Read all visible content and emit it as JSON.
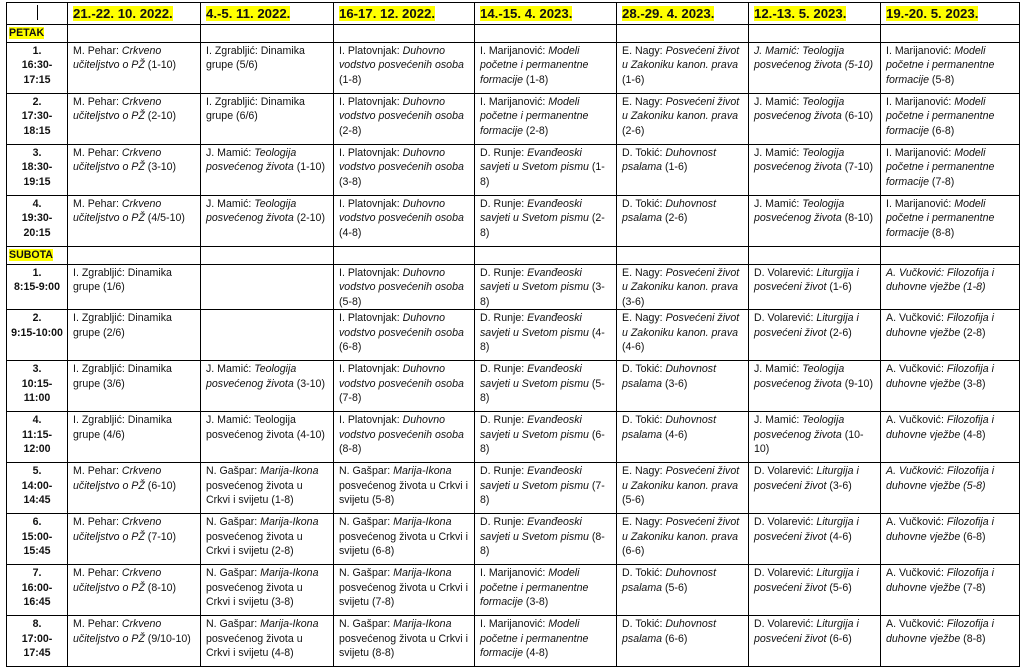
{
  "corner_mark": "|",
  "dates": [
    "21.-22. 10. 2022.",
    "4.-5. 11. 2022.",
    "16-17. 12. 2022.",
    "14.-15. 4. 2023.",
    "28.-29. 4. 2023.",
    "12.-13. 5. 2023.",
    "19.-20. 5. 2023."
  ],
  "highlight_color": "#ffff00",
  "days": [
    {
      "label": "PETAK",
      "rows": [
        {
          "num": "1.",
          "time": "16:30-17:15",
          "cells": [
            {
              "a": "M. Pehar: ",
              "t": "Crkveno učiteljstvo o PŽ",
              "n": " (1-10)"
            },
            {
              "a": "I. Zgrabljić: Dinamika grupe (5/6)"
            },
            {
              "a": "I. Platovnjak: ",
              "t": "Duhovno vodstvo posvećenih osoba",
              "n": " (1-8)"
            },
            {
              "a": "I. Marijanović: ",
              "t": "Modeli početne i permanentne formacije",
              "n": " (1-8)"
            },
            {
              "a": "E. Nagy: ",
              "t": "Posvećeni život u Zakoniku kanon. prava",
              "n": " (1-6)"
            },
            {
              "a": "J. Mamić: ",
              "t": "Teologija posvećenog života",
              "n": " (5-10)",
              "i": true
            },
            {
              "a": "I. Marijanović: ",
              "t": "Modeli početne i permanentne formacije",
              "n": " (5-8)"
            }
          ]
        },
        {
          "num": "2.",
          "time": "17:30-18:15",
          "cells": [
            {
              "a": "M. Pehar: ",
              "t": "Crkveno učiteljstvo o PŽ",
              "n": " (2-10)"
            },
            {
              "a": "I. Zgrabljić: Dinamika grupe (6/6)"
            },
            {
              "a": "I. Platovnjak: ",
              "t": "Duhovno vodstvo posvećenih osoba",
              "n": " (2-8)"
            },
            {
              "a": "I. Marijanović: ",
              "t": "Modeli početne i permanentne formacije",
              "n": " (2-8)"
            },
            {
              "a": "E. Nagy: ",
              "t": "Posvećeni život u Zakoniku kanon. prava",
              "n": " (2-6)"
            },
            {
              "a": "J. Mamić: ",
              "t": "Teologija posvećenog života",
              "n": " (6-10)"
            },
            {
              "a": "I. Marijanović: ",
              "t": "Modeli početne i permanentne formacije",
              "n": " (6-8)"
            }
          ]
        },
        {
          "num": "3.",
          "time": "18:30-19:15",
          "cells": [
            {
              "a": "M. Pehar: ",
              "t": "Crkveno učiteljstvo o PŽ",
              "n": " (3-10)"
            },
            {
              "a": "J. Mamić: ",
              "t": "Teologija posvećenog života",
              "n": " (1-10)"
            },
            {
              "a": "I. Platovnjak: ",
              "t": "Duhovno vodstvo posvećenih osoba",
              "n": " (3-8)"
            },
            {
              "a": "D. Runje: ",
              "t": "Evanđeoski savjeti u Svetom pismu",
              "n": " (1-8)"
            },
            {
              "a": "D. Tokić: ",
              "t": "Duhovnost psalama",
              "n": " (1-6)"
            },
            {
              "a": "J. Mamić: ",
              "t": "Teologija posvećenog života",
              "n": " (7-10)"
            },
            {
              "a": "I. Marijanović: ",
              "t": "Modeli početne i permanentne formacije",
              "n": " (7-8)"
            }
          ]
        },
        {
          "num": "4.",
          "time": "19:30-20:15",
          "cells": [
            {
              "a": "M. Pehar: ",
              "t": "Crkveno učiteljstvo o PŽ",
              "n": " (4/5-10)"
            },
            {
              "a": "J. Mamić: ",
              "t": "Teologija posvećenog života",
              "n": " (2-10)"
            },
            {
              "a": "I. Platovnjak: ",
              "t": "Duhovno vodstvo posvećenih osoba",
              "n": " (4-8)"
            },
            {
              "a": "D. Runje: ",
              "t": "Evanđeoski savjeti u Svetom pismu",
              "n": " (2-8)"
            },
            {
              "a": "D. Tokić: ",
              "t": "Duhovnost psalama",
              "n": " (2-6)"
            },
            {
              "a": "J. Mamić: ",
              "t": "Teologija posvećenog života",
              "n": " (8-10)"
            },
            {
              "a": "I. Marijanović: ",
              "t": "Modeli početne i permanentne formacije",
              "n": " (8-8)"
            }
          ]
        }
      ]
    },
    {
      "label": "SUBOTA",
      "rows": [
        {
          "num": "1.",
          "time": "8:15-9:00",
          "cells": [
            {
              "a": "I. Zgrabljić: Dinamika grupe (1/6)"
            },
            {},
            {
              "a": "I. Platovnjak: ",
              "t": "Duhovno vodstvo posvećenih osoba",
              "n": " (5-8)"
            },
            {
              "a": "D. Runje: ",
              "t": "Evanđeoski savjeti u Svetom pismu",
              "n": " (3-8)"
            },
            {
              "a": "E. Nagy: ",
              "t": "Posvećeni život u Zakoniku kanon. prava",
              "n": " (3-6)"
            },
            {
              "a": "D. Volarević: ",
              "t": "Liturgija i posvećeni život",
              "n": " (1-6)"
            },
            {
              "a": "A. Vučković: ",
              "t": "Filozofija i duhovne vježbe",
              "n": " (1-8)",
              "i": true
            }
          ]
        },
        {
          "num": "2.",
          "time": "9:15-10:00",
          "cells": [
            {
              "a": "I. Zgrabljić: Dinamika grupe (2/6)"
            },
            {},
            {
              "a": "I. Platovnjak: ",
              "t": "Duhovno vodstvo posvećenih osoba",
              "n": " (6-8)"
            },
            {
              "a": "D. Runje: ",
              "t": "Evanđeoski savjeti u Svetom pismu",
              "n": " (4-8)"
            },
            {
              "a": "E. Nagy: ",
              "t": "Posvećeni život u Zakoniku kanon. prava",
              "n": " (4-6)"
            },
            {
              "a": "D. Volarević: ",
              "t": "Liturgija i posvećeni život",
              "n": " (2-6)"
            },
            {
              "a": "A. Vučković: ",
              "t": "Filozofija i duhovne vježbe",
              "n": " (2-8)"
            }
          ]
        },
        {
          "num": "3.",
          "time": "10:15-11:00",
          "cells": [
            {
              "a": "I. Zgrabljić: Dinamika grupe (3/6)"
            },
            {
              "a": "J. Mamić: ",
              "t": "Teologija posvećenog života",
              "n": " (3-10)"
            },
            {
              "a": "I. Platovnjak: ",
              "t": "Duhovno vodstvo posvećenih osoba",
              "n": " (7-8)"
            },
            {
              "a": "D. Runje: ",
              "t": "Evanđeoski savjeti u Svetom pismu",
              "n": " (5-8)"
            },
            {
              "a": "D. Tokić: ",
              "t": "Duhovnost psalama",
              "n": " (3-6)"
            },
            {
              "a": "J. Mamić: ",
              "t": "Teologija posvećenog života",
              "n": " (9-10)"
            },
            {
              "a": "A. Vučković: ",
              "t": "Filozofija i duhovne vježbe",
              "n": " (3-8)"
            }
          ]
        },
        {
          "num": "4.",
          "time": "11:15-12:00",
          "cells": [
            {
              "a": "I. Zgrabljić: Dinamika grupe (4/6)"
            },
            {
              "a": "J. Mamić: Teologija posvećenog života (4-10)"
            },
            {
              "a": "I. Platovnjak: ",
              "t": "Duhovno vodstvo posvećenih osoba",
              "n": " (8-8)"
            },
            {
              "a": "D. Runje: ",
              "t": "Evanđeoski savjeti u Svetom pismu",
              "n": " (6-8)"
            },
            {
              "a": "D. Tokić: ",
              "t": "Duhovnost psalama",
              "n": " (4-6)"
            },
            {
              "a": "J. Mamić: ",
              "t": "Teologija posvećenog života",
              "n": " (10-10)"
            },
            {
              "a": "A. Vučković: ",
              "t": "Filozofija i duhovne vježbe",
              "n": " (4-8)"
            }
          ]
        },
        {
          "num": "5.",
          "time": "14:00-14:45",
          "cells": [
            {
              "a": "M. Pehar: ",
              "t": "Crkveno učiteljstvo o PŽ",
              "n": " (6-10)"
            },
            {
              "a": "N. Gašpar: ",
              "t": "Marija-Ikona",
              "n": " posvećenog života u Crkvi i svijetu (1-8)"
            },
            {
              "a": "N. Gašpar: ",
              "t": "Marija-Ikona",
              "n": " posvećenog života u Crkvi i svijetu (5-8)"
            },
            {
              "a": "D. Runje: ",
              "t": "Evanđeoski savjeti u Svetom pismu",
              "n": " (7-8)"
            },
            {
              "a": "E. Nagy: ",
              "t": "Posvećeni život u Zakoniku kanon. prava",
              "n": " (5-6)"
            },
            {
              "a": "D. Volarević: ",
              "t": "Liturgija i posvećeni život",
              "n": " (3-6)"
            },
            {
              "a": "A. Vučković: ",
              "t": "Filozofija i duhovne vježbe",
              "n": " (5-8)",
              "i": true
            }
          ]
        },
        {
          "num": "6.",
          "time": "15:00-15:45",
          "cells": [
            {
              "a": "M. Pehar: ",
              "t": "Crkveno učiteljstvo o PŽ",
              "n": " (7-10)"
            },
            {
              "a": "N. Gašpar: ",
              "t": "Marija-Ikona",
              "n": " posvećenog života u Crkvi i svijetu (2-8)"
            },
            {
              "a": "N. Gašpar: ",
              "t": "Marija-Ikona",
              "n": " posvećenog života u Crkvi i svijetu (6-8)"
            },
            {
              "a": "D. Runje: ",
              "t": "Evanđeoski savjeti u Svetom pismu",
              "n": " (8-8)"
            },
            {
              "a": "E. Nagy: ",
              "t": "Posvećeni život u Zakoniku kanon. prava",
              "n": " (6-6)"
            },
            {
              "a": "D. Volarević: ",
              "t": "Liturgija i posvećeni život",
              "n": " (4-6)"
            },
            {
              "a": "A. Vučković: ",
              "t": "Filozofija i duhovne vježbe",
              "n": " (6-8)"
            }
          ]
        },
        {
          "num": "7.",
          "time": "16:00-16:45",
          "cells": [
            {
              "a": "M. Pehar: ",
              "t": "Crkveno učiteljstvo o PŽ",
              "n": " (8-10)"
            },
            {
              "a": "N. Gašpar: ",
              "t": "Marija-Ikona",
              "n": " posvećenog života u Crkvi i svijetu (3-8)"
            },
            {
              "a": "N. Gašpar: ",
              "t": "Marija-Ikona",
              "n": " posvećenog života u Crkvi i svijetu (7-8)"
            },
            {
              "a": "I. Marijanović: ",
              "t": "Modeli početne i permanentne formacije",
              "n": " (3-8)"
            },
            {
              "a": "D. Tokić: ",
              "t": "Duhovnost psalama",
              "n": " (5-6)"
            },
            {
              "a": "D. Volarević: ",
              "t": "Liturgija i posvećeni život",
              "n": " (5-6)"
            },
            {
              "a": "A. Vučković: ",
              "t": "Filozofija i duhovne vježbe",
              "n": " (7-8)"
            }
          ]
        },
        {
          "num": "8.",
          "time": "17:00-17:45",
          "cells": [
            {
              "a": "M. Pehar: ",
              "t": "Crkveno učiteljstvo o PŽ",
              "n": " (9/10-10)"
            },
            {
              "a": "N. Gašpar: ",
              "t": "Marija-Ikona",
              "n": " posvećenog života u Crkvi i svijetu (4-8)"
            },
            {
              "a": "N. Gašpar: ",
              "t": "Marija-Ikona",
              "n": " posvećenog života u Crkvi i svijetu (8-8)"
            },
            {
              "a": "I. Marijanović: ",
              "t": "Modeli početne i permanentne formacije",
              "n": " (4-8)"
            },
            {
              "a": "D. Tokić: ",
              "t": "Duhovnost psalama",
              "n": " (6-6)"
            },
            {
              "a": "D. Volarević: ",
              "t": "Liturgija i posvećeni život",
              "n": " (6-6)"
            },
            {
              "a": "A. Vučković: ",
              "t": "Filozofija i duhovne vježbe",
              "n": " (8-8)"
            }
          ]
        }
      ]
    }
  ]
}
